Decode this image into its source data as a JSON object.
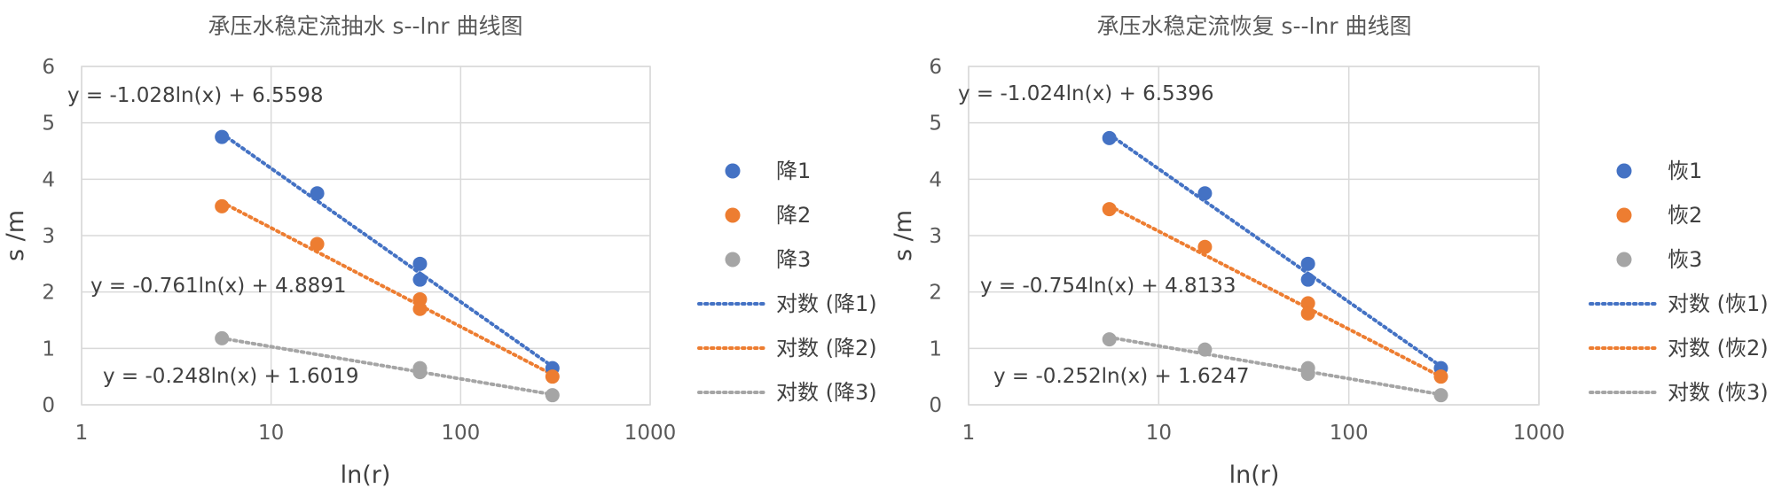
{
  "chart_data": [
    {
      "type": "scatter",
      "title": "承压水稳定流抽水 s--lnr 曲线图",
      "xlabel": "ln(r)",
      "ylabel": "s /m",
      "x_scale": "log",
      "xlim": [
        1,
        1000
      ],
      "ylim": [
        0,
        6
      ],
      "x_ticks": [
        "1",
        "10",
        "100",
        "1000"
      ],
      "y_ticks": [
        "0",
        "1",
        "2",
        "3",
        "4",
        "5",
        "6"
      ],
      "grid": true,
      "legend_position": "right",
      "series": [
        {
          "name": "降1",
          "color": "#4472c4",
          "points": [
            [
              5.5,
              4.75
            ],
            [
              17.5,
              3.75
            ],
            [
              61,
              2.5
            ],
            [
              61,
              2.22
            ],
            [
              305,
              0.65
            ]
          ]
        },
        {
          "name": "降2",
          "color": "#ed7d31",
          "points": [
            [
              5.5,
              3.52
            ],
            [
              17.5,
              2.85
            ],
            [
              61,
              1.87
            ],
            [
              61,
              1.7
            ],
            [
              305,
              0.5
            ]
          ]
        },
        {
          "name": "降3",
          "color": "#a5a5a5",
          "points": [
            [
              5.5,
              1.18
            ],
            [
              61,
              0.65
            ],
            [
              61,
              0.58
            ],
            [
              305,
              0.17
            ]
          ]
        }
      ],
      "trendlines": [
        {
          "name": "对数 (降1)",
          "color": "#4472c4",
          "a": -1.028,
          "b": 6.5598,
          "x_range": [
            5.5,
            305
          ],
          "equation": "y = -1.028ln(x) + 6.5598"
        },
        {
          "name": "对数 (降2)",
          "color": "#ed7d31",
          "a": -0.761,
          "b": 4.8891,
          "x_range": [
            5.5,
            305
          ],
          "equation": "y = -0.761ln(x) + 4.8891"
        },
        {
          "name": "对数 (降3)",
          "color": "#a5a5a5",
          "a": -0.248,
          "b": 1.6019,
          "x_range": [
            5.5,
            305
          ],
          "equation": "y = -0.248ln(x) + 1.6019"
        }
      ]
    },
    {
      "type": "scatter",
      "title": "承压水稳定流恢复 s--lnr 曲线图",
      "xlabel": "ln(r)",
      "ylabel": "s /m",
      "x_scale": "log",
      "xlim": [
        1,
        1000
      ],
      "ylim": [
        0,
        6
      ],
      "x_ticks": [
        "1",
        "10",
        "100",
        "1000"
      ],
      "y_ticks": [
        "0",
        "1",
        "2",
        "3",
        "4",
        "5",
        "6"
      ],
      "grid": true,
      "legend_position": "right",
      "series": [
        {
          "name": "恢1",
          "color": "#4472c4",
          "points": [
            [
              5.5,
              4.73
            ],
            [
              17.5,
              3.75
            ],
            [
              61,
              2.5
            ],
            [
              61,
              2.22
            ],
            [
              305,
              0.65
            ]
          ]
        },
        {
          "name": "恢2",
          "color": "#ed7d31",
          "points": [
            [
              5.5,
              3.47
            ],
            [
              17.5,
              2.8
            ],
            [
              61,
              1.8
            ],
            [
              61,
              1.62
            ],
            [
              305,
              0.5
            ]
          ]
        },
        {
          "name": "恢3",
          "color": "#a5a5a5",
          "points": [
            [
              5.5,
              1.16
            ],
            [
              17.5,
              0.98
            ],
            [
              61,
              0.65
            ],
            [
              61,
              0.55
            ],
            [
              305,
              0.17
            ]
          ]
        }
      ],
      "trendlines": [
        {
          "name": "对数 (恢1)",
          "color": "#4472c4",
          "a": -1.024,
          "b": 6.5396,
          "x_range": [
            5.5,
            305
          ],
          "equation": "y = -1.024ln(x) + 6.5396"
        },
        {
          "name": "对数 (恢2)",
          "color": "#ed7d31",
          "a": -0.754,
          "b": 4.8133,
          "x_range": [
            5.5,
            305
          ],
          "equation": "y = -0.754ln(x) + 4.8133"
        },
        {
          "name": "对数 (恢3)",
          "color": "#a5a5a5",
          "a": -0.252,
          "b": 1.6247,
          "x_range": [
            5.5,
            305
          ],
          "equation": "y = -0.252ln(x) + 1.6247"
        }
      ]
    }
  ]
}
